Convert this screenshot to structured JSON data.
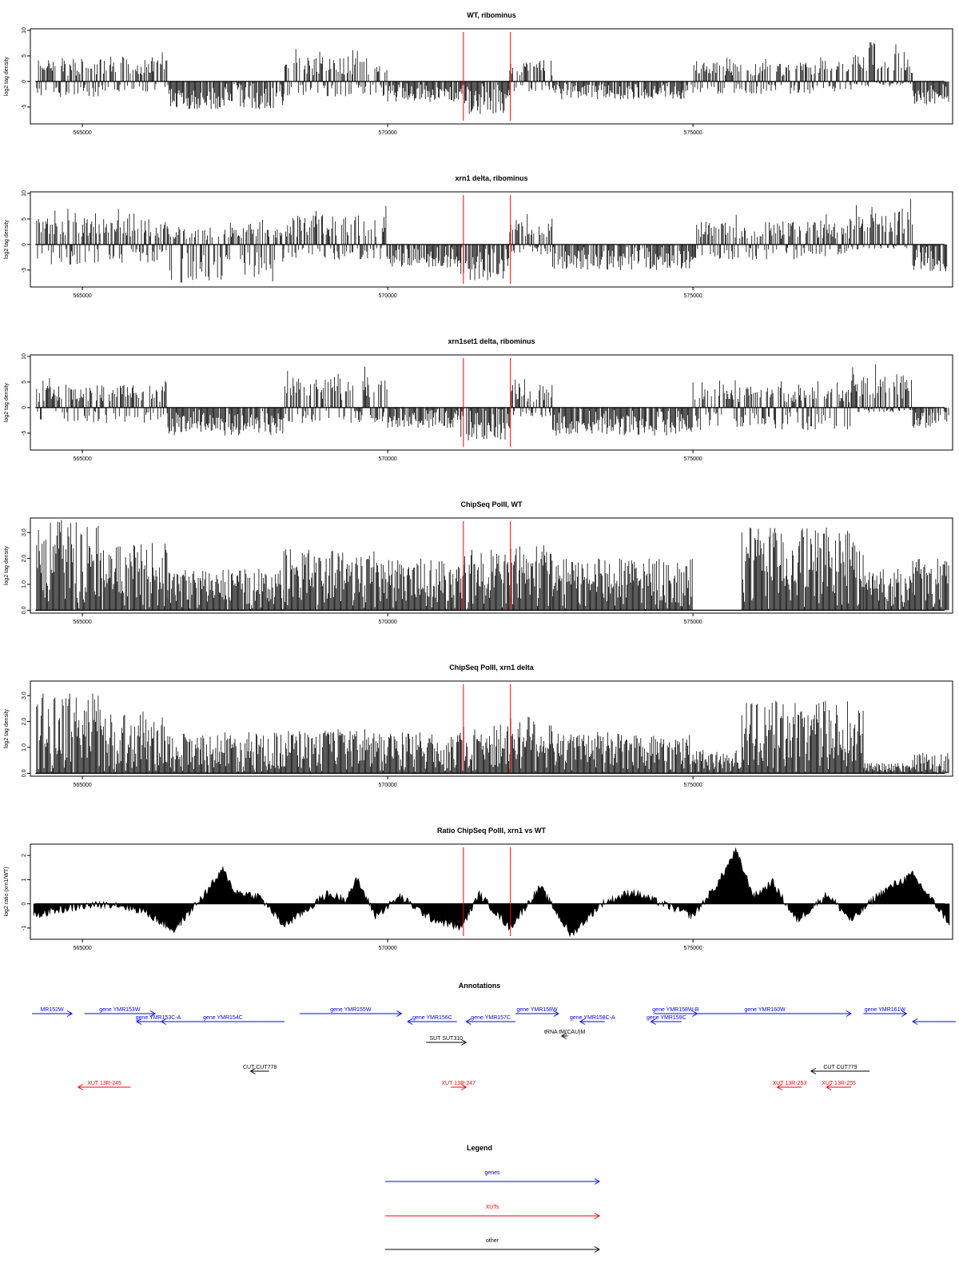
{
  "tracks_meta": {
    "x_ticks": [
      565000,
      570000,
      575000
    ],
    "x_tick_labels": [
      "565000",
      "570000",
      "575000"
    ],
    "xlim": [
      564200,
      579200
    ],
    "marker_color": "#ff0000",
    "markers": [
      571240,
      572010
    ]
  },
  "chart_data": [
    {
      "type": "bar",
      "title": "WT, ribominus",
      "ylabel": "log2 tag density",
      "ylim": [
        -8,
        10
      ],
      "y_ticks": [
        -5,
        0,
        5,
        10
      ],
      "y_tick_labels": [
        "-5",
        "0",
        "5",
        "10"
      ],
      "baseline": 0,
      "segments": [
        {
          "start": 564250,
          "end": 565300,
          "min": -3,
          "max": 6
        },
        {
          "start": 565300,
          "end": 566400,
          "min": -2,
          "max": 6.5
        },
        {
          "start": 566400,
          "end": 567600,
          "min": -5.5,
          "max": 0
        },
        {
          "start": 567600,
          "end": 568300,
          "min": -5.5,
          "max": 0
        },
        {
          "start": 568300,
          "end": 570000,
          "min": -3,
          "max": 6.5
        },
        {
          "start": 570000,
          "end": 571200,
          "min": -4,
          "max": 0
        },
        {
          "start": 571200,
          "end": 572000,
          "min": -6.5,
          "max": 0
        },
        {
          "start": 572000,
          "end": 572700,
          "min": -2,
          "max": 6
        },
        {
          "start": 572700,
          "end": 575000,
          "min": -3.5,
          "max": 0
        },
        {
          "start": 575000,
          "end": 577600,
          "min": -2.5,
          "max": 5
        },
        {
          "start": 577600,
          "end": 578600,
          "min": -1,
          "max": 8
        },
        {
          "start": 578600,
          "end": 579200,
          "min": -4.5,
          "max": 0
        }
      ],
      "markers": [
        571240,
        572010
      ]
    },
    {
      "type": "bar",
      "title": "xrn1 delta, ribominus",
      "ylabel": "log2 tag density",
      "ylim": [
        -8,
        10
      ],
      "y_ticks": [
        -5,
        0,
        5,
        10
      ],
      "y_tick_labels": [
        "-5",
        "0",
        "5",
        "10"
      ],
      "baseline": 0,
      "segments": [
        {
          "start": 564250,
          "end": 566400,
          "min": -4,
          "max": 7
        },
        {
          "start": 566400,
          "end": 568300,
          "min": -7.5,
          "max": 5
        },
        {
          "start": 568300,
          "end": 570000,
          "min": -3,
          "max": 8
        },
        {
          "start": 570000,
          "end": 571200,
          "min": -4.5,
          "max": 0
        },
        {
          "start": 571200,
          "end": 572000,
          "min": -7,
          "max": 0
        },
        {
          "start": 572000,
          "end": 572700,
          "min": -2,
          "max": 6.5
        },
        {
          "start": 572700,
          "end": 575000,
          "min": -5,
          "max": 0
        },
        {
          "start": 575000,
          "end": 577600,
          "min": -3,
          "max": 6
        },
        {
          "start": 577600,
          "end": 578600,
          "min": -1,
          "max": 9
        },
        {
          "start": 578600,
          "end": 579200,
          "min": -5.5,
          "max": 0
        }
      ],
      "markers": [
        571240,
        572010
      ]
    },
    {
      "type": "bar",
      "title": "xrn1set1 delta, ribominus",
      "ylabel": "log2 tag density",
      "ylim": [
        -8,
        10
      ],
      "y_ticks": [
        -5,
        0,
        5,
        10
      ],
      "y_tick_labels": [
        "-5",
        "0",
        "5",
        "10"
      ],
      "baseline": 0,
      "segments": [
        {
          "start": 564250,
          "end": 566400,
          "min": -3,
          "max": 6
        },
        {
          "start": 566400,
          "end": 568300,
          "min": -5.5,
          "max": 0
        },
        {
          "start": 568300,
          "end": 570000,
          "min": -3,
          "max": 8
        },
        {
          "start": 570000,
          "end": 571200,
          "min": -4,
          "max": 0
        },
        {
          "start": 571200,
          "end": 572000,
          "min": -6.5,
          "max": 0
        },
        {
          "start": 572000,
          "end": 572700,
          "min": -2,
          "max": 6
        },
        {
          "start": 572700,
          "end": 575000,
          "min": -5.5,
          "max": 0
        },
        {
          "start": 575000,
          "end": 577600,
          "min": -4.5,
          "max": 5.5
        },
        {
          "start": 577600,
          "end": 578600,
          "min": -1,
          "max": 9
        },
        {
          "start": 578600,
          "end": 579200,
          "min": -4,
          "max": 0
        }
      ],
      "markers": [
        571240,
        572010
      ]
    },
    {
      "type": "bar",
      "title": "ChipSeq PolII, WT",
      "ylabel": "log2 tag density",
      "ylim": [
        -0.05,
        3.5
      ],
      "y_ticks": [
        0.0,
        1.0,
        2.0,
        3.0
      ],
      "y_tick_labels": [
        "0.0",
        "1.0",
        "2.0",
        "3.0"
      ],
      "baseline": 0,
      "segments": [
        {
          "start": 564250,
          "end": 565300,
          "min": 0,
          "max": 3.5
        },
        {
          "start": 565300,
          "end": 566400,
          "min": 0,
          "max": 2.6
        },
        {
          "start": 566400,
          "end": 568300,
          "min": 0,
          "max": 1.6
        },
        {
          "start": 568300,
          "end": 570000,
          "min": 0,
          "max": 2.4
        },
        {
          "start": 570000,
          "end": 571200,
          "min": 0,
          "max": 2.0
        },
        {
          "start": 571200,
          "end": 572000,
          "min": 0,
          "max": 2.4
        },
        {
          "start": 572000,
          "end": 572700,
          "min": 0,
          "max": 2.6
        },
        {
          "start": 572700,
          "end": 575000,
          "min": 0,
          "max": 2.0
        },
        {
          "start": 575000,
          "end": 575800,
          "min": 0,
          "max": 0
        },
        {
          "start": 575800,
          "end": 577800,
          "min": 0,
          "max": 3.2
        },
        {
          "start": 577800,
          "end": 578600,
          "min": 0,
          "max": 1.6
        },
        {
          "start": 578600,
          "end": 579200,
          "min": 0,
          "max": 2.0
        }
      ],
      "markers": [
        571240,
        572010
      ]
    },
    {
      "type": "bar",
      "title": "ChipSeq PolII, xrn1 delta",
      "ylabel": "log2 tag density",
      "ylim": [
        -0.05,
        3.5
      ],
      "y_ticks": [
        0.0,
        1.0,
        2.0,
        3.0
      ],
      "y_tick_labels": [
        "0.0",
        "1.0",
        "2.0",
        "3.0"
      ],
      "baseline": 0,
      "segments": [
        {
          "start": 564250,
          "end": 565300,
          "min": 0,
          "max": 3.1
        },
        {
          "start": 565300,
          "end": 566400,
          "min": 0,
          "max": 2.4
        },
        {
          "start": 566400,
          "end": 568300,
          "min": 0,
          "max": 1.6
        },
        {
          "start": 568300,
          "end": 570000,
          "min": 0,
          "max": 1.7
        },
        {
          "start": 570000,
          "end": 571200,
          "min": 0,
          "max": 1.6
        },
        {
          "start": 571200,
          "end": 572000,
          "min": 0,
          "max": 1.9
        },
        {
          "start": 572000,
          "end": 572700,
          "min": 0,
          "max": 2.3
        },
        {
          "start": 572700,
          "end": 575000,
          "min": 0,
          "max": 1.6
        },
        {
          "start": 575000,
          "end": 575800,
          "min": 0,
          "max": 0.9
        },
        {
          "start": 575800,
          "end": 577800,
          "min": 0,
          "max": 2.8
        },
        {
          "start": 577800,
          "end": 578600,
          "min": 0,
          "max": 0.4
        },
        {
          "start": 578600,
          "end": 579200,
          "min": 0,
          "max": 0.8
        }
      ],
      "markers": [
        571240,
        572010
      ]
    },
    {
      "type": "area",
      "title": "Ratio ChipSeq PolII, xrn1 vs WT",
      "ylabel": "log2 ratio (xrn1/WT)",
      "ylim": [
        -1.4,
        2.4
      ],
      "y_ticks": [
        -1,
        0,
        1,
        2
      ],
      "y_tick_labels": [
        "-1",
        "0",
        "1",
        "2"
      ],
      "baseline": 0,
      "x": [
        564200,
        564500,
        565000,
        565500,
        566000,
        566500,
        567000,
        567300,
        567500,
        567900,
        568300,
        568700,
        569000,
        569300,
        569500,
        569800,
        570200,
        570700,
        571200,
        571500,
        572000,
        572500,
        573000,
        573500,
        574000,
        574500,
        575000,
        575400,
        575700,
        576000,
        576300,
        576700,
        577200,
        577600,
        578000,
        578300,
        578600,
        579200
      ],
      "values": [
        -0.5,
        -0.3,
        -0.1,
        0.0,
        -0.3,
        -1.1,
        0.4,
        1.4,
        0.5,
        0.3,
        -0.9,
        -0.2,
        0.4,
        0.2,
        1.0,
        -0.5,
        0.3,
        -0.6,
        -1.0,
        0.4,
        -1.0,
        0.7,
        -1.3,
        0.0,
        0.5,
        0.0,
        -0.5,
        0.8,
        2.2,
        0.3,
        0.9,
        -0.7,
        0.4,
        -0.7,
        0.3,
        0.8,
        1.2,
        -0.8
      ],
      "markers": [
        571240,
        572010
      ]
    }
  ],
  "annotations": {
    "title": "Annotations",
    "items": [
      {
        "label": "MR152W",
        "start": 564200,
        "end": 564850,
        "dir": "right",
        "type": "gene",
        "row": 0
      },
      {
        "label": "gene YMR153W",
        "start": 565050,
        "end": 566200,
        "dir": "right",
        "type": "gene",
        "row": 0
      },
      {
        "label": "gene YMR153C-A",
        "start": 565900,
        "end": 566600,
        "dir": "left",
        "type": "gene",
        "row": 1
      },
      {
        "label": "gene YMR154C",
        "start": 566300,
        "end": 568300,
        "dir": "left",
        "type": "gene",
        "row": 1
      },
      {
        "label": "gene YMR155W",
        "start": 568550,
        "end": 570200,
        "dir": "right",
        "type": "gene",
        "row": 0
      },
      {
        "label": "gene YMR156C",
        "start": 570300,
        "end": 571100,
        "dir": "left",
        "type": "gene",
        "row": 1
      },
      {
        "label": "gene YMR157C",
        "start": 571250,
        "end": 572050,
        "dir": "left",
        "type": "gene",
        "row": 1
      },
      {
        "label": "gene YMR158W",
        "start": 572050,
        "end": 572750,
        "dir": "right",
        "type": "gene",
        "row": 0
      },
      {
        "label": "gene YMR158C-A",
        "start": 573100,
        "end": 573500,
        "dir": "left",
        "type": "gene",
        "row": 1
      },
      {
        "label": "gene YMR158W-B",
        "start": 574300,
        "end": 575000,
        "dir": "right",
        "type": "gene",
        "row": 0
      },
      {
        "label": "gene YMR159C",
        "start": 574250,
        "end": 574750,
        "dir": "left",
        "type": "gene",
        "row": 1
      },
      {
        "label": "gene YMR160W",
        "start": 574700,
        "end": 577500,
        "dir": "right",
        "type": "gene",
        "row": 0
      },
      {
        "label": "gene YMR161W",
        "start": 577700,
        "end": 578400,
        "dir": "right",
        "type": "gene",
        "row": 0
      },
      {
        "label": "",
        "start": 578500,
        "end": 579200,
        "dir": "left",
        "type": "gene",
        "row": 1
      },
      {
        "label": "tRNA tM(CAU)M",
        "start": 572800,
        "end": 572900,
        "dir": "left",
        "type": "other",
        "row": 2
      },
      {
        "label": "SUT SUT310",
        "start": 570600,
        "end": 571250,
        "dir": "right",
        "type": "other",
        "row": 3
      },
      {
        "label": "CUT CUT778",
        "start": 567750,
        "end": 568050,
        "dir": "left",
        "type": "other",
        "row": 4
      },
      {
        "label": "CUT CUT779",
        "start": 576850,
        "end": 577800,
        "dir": "left",
        "type": "other",
        "row": 4
      },
      {
        "label": "XUT 13R-245",
        "start": 564950,
        "end": 565800,
        "dir": "left",
        "type": "xut",
        "row": 5
      },
      {
        "label": "XUT 13R-247",
        "start": 571000,
        "end": 571250,
        "dir": "right",
        "type": "xut",
        "row": 5
      },
      {
        "label": "XUT 13R-253",
        "start": 576300,
        "end": 576700,
        "dir": "left",
        "type": "xut",
        "row": 5
      },
      {
        "label": "XUT 13R-255",
        "start": 577100,
        "end": 577500,
        "dir": "left",
        "type": "xut",
        "row": 5
      }
    ],
    "type_colors": {
      "gene": "#0000ff",
      "xut": "#ff0000",
      "other": "#000000"
    }
  },
  "legend": {
    "title": "Legend",
    "entries": [
      {
        "label": "genes",
        "color": "#0000ff"
      },
      {
        "label": "XUTs",
        "color": "#ff0000"
      },
      {
        "label": "other",
        "color": "#000000"
      }
    ]
  }
}
